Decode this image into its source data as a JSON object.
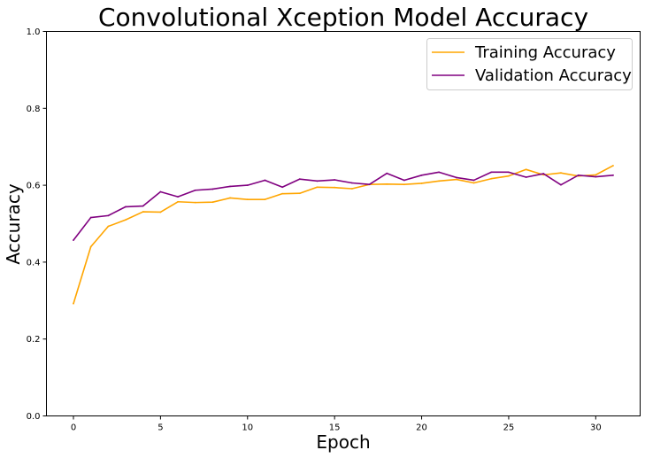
{
  "chart_data": {
    "type": "line",
    "title": "Convolutional Xception Model Accuracy",
    "xlabel": "Epoch",
    "ylabel": "Accuracy",
    "xlim": [
      -1.55,
      32.55
    ],
    "ylim": [
      0.0,
      1.0
    ],
    "xticks": [
      0,
      5,
      10,
      15,
      20,
      25,
      30
    ],
    "xtick_labels": [
      "0",
      "5",
      "10",
      "15",
      "20",
      "25",
      "30"
    ],
    "yticks": [
      0.0,
      0.2,
      0.4,
      0.6,
      0.8,
      1.0
    ],
    "ytick_labels": [
      "0.0",
      "0.2",
      "0.4",
      "0.6",
      "0.8",
      "1.0"
    ],
    "grid": false,
    "legend_position": "top-right",
    "x": [
      0,
      1,
      2,
      3,
      4,
      5,
      6,
      7,
      8,
      9,
      10,
      11,
      12,
      13,
      14,
      15,
      16,
      17,
      18,
      19,
      20,
      21,
      22,
      23,
      24,
      25,
      26,
      27,
      28,
      29,
      30,
      31
    ],
    "series": [
      {
        "name": "Training Accuracy",
        "color": "#ffa500",
        "values": [
          0.292,
          0.44,
          0.493,
          0.51,
          0.531,
          0.53,
          0.557,
          0.555,
          0.556,
          0.567,
          0.563,
          0.563,
          0.578,
          0.579,
          0.595,
          0.594,
          0.591,
          0.602,
          0.603,
          0.602,
          0.605,
          0.611,
          0.615,
          0.606,
          0.617,
          0.624,
          0.641,
          0.627,
          0.632,
          0.624,
          0.627,
          0.651
        ]
      },
      {
        "name": "Validation Accuracy",
        "color": "#800080",
        "values": [
          0.457,
          0.516,
          0.521,
          0.544,
          0.546,
          0.583,
          0.57,
          0.587,
          0.59,
          0.597,
          0.6,
          0.613,
          0.595,
          0.616,
          0.611,
          0.614,
          0.606,
          0.602,
          0.631,
          0.613,
          0.626,
          0.634,
          0.62,
          0.613,
          0.634,
          0.634,
          0.621,
          0.63,
          0.601,
          0.626,
          0.622,
          0.626
        ]
      }
    ]
  }
}
